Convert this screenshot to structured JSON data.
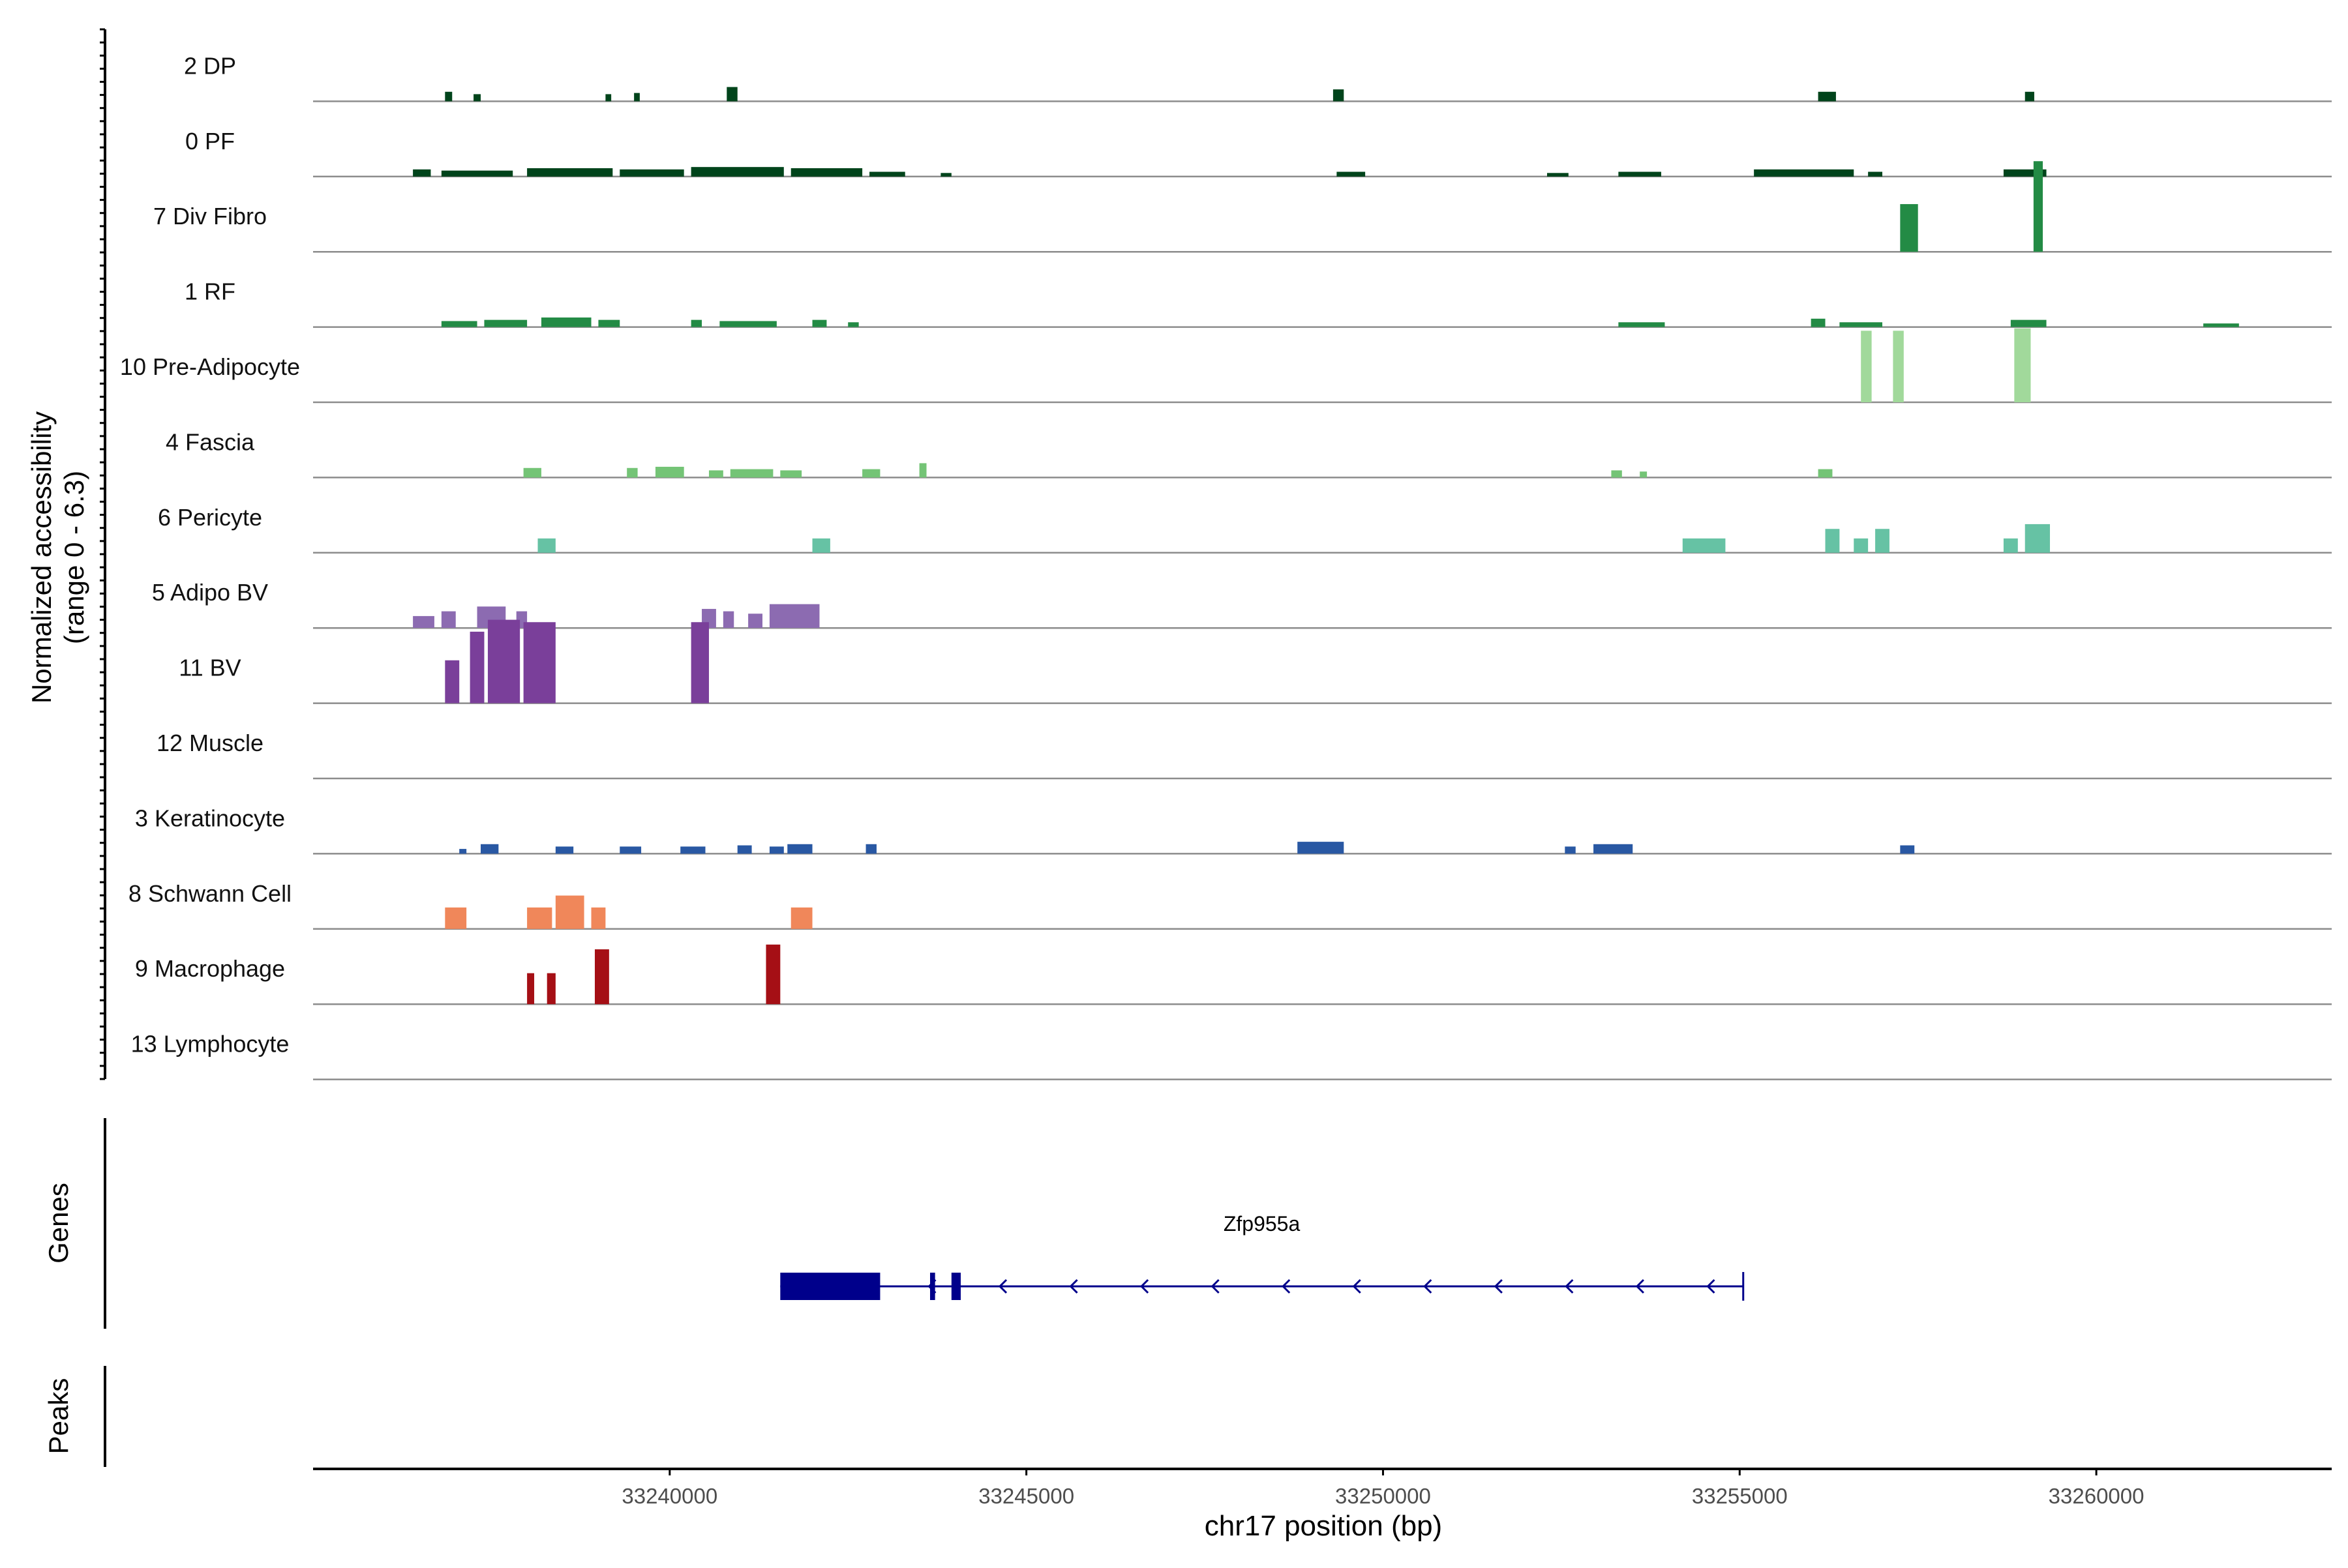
{
  "chart_data": {
    "type": "area",
    "subtype": "genome-coverage-track",
    "region": {
      "chrom": "chr17",
      "start": 33235000,
      "end": 33263300
    },
    "ylabel": "Normalized accessibility",
    "ylabel_range": "(range 0 - 6.3)",
    "ylim": [
      0,
      6.3
    ],
    "xlabel": "chr17 position (bp)",
    "x_ticks": [
      33240000,
      33245000,
      33250000,
      33255000,
      33260000
    ],
    "x_tick_labels": [
      "33240000",
      "33245000",
      "33250000",
      "33255000",
      "33260000"
    ],
    "grid": false,
    "tracks": [
      {
        "name": "2 DP",
        "color": "#00441b",
        "peaks": [
          [
            33236850,
            33236950,
            0.4
          ],
          [
            33237250,
            33237350,
            0.3
          ],
          [
            33239100,
            33239180,
            0.3
          ],
          [
            33239500,
            33239580,
            0.35
          ],
          [
            33240800,
            33240950,
            0.6
          ],
          [
            33249300,
            33249450,
            0.5
          ],
          [
            33256100,
            33256350,
            0.4
          ],
          [
            33259000,
            33259130,
            0.4
          ]
        ]
      },
      {
        "name": "0 PF",
        "color": "#00441b",
        "peaks": [
          [
            33236400,
            33236650,
            0.3
          ],
          [
            33236800,
            33237800,
            0.25
          ],
          [
            33238000,
            33239200,
            0.35
          ],
          [
            33239300,
            33240200,
            0.3
          ],
          [
            33240300,
            33241600,
            0.4
          ],
          [
            33241700,
            33242700,
            0.35
          ],
          [
            33242800,
            33243300,
            0.2
          ],
          [
            33243800,
            33243950,
            0.15
          ],
          [
            33249350,
            33249750,
            0.2
          ],
          [
            33252300,
            33252600,
            0.15
          ],
          [
            33253300,
            33253900,
            0.2
          ],
          [
            33255200,
            33256600,
            0.3
          ],
          [
            33256800,
            33257000,
            0.2
          ],
          [
            33258700,
            33259300,
            0.3
          ]
        ]
      },
      {
        "name": "7 Div Fibro",
        "color": "#238b45",
        "peaks": [
          [
            33257250,
            33257500,
            2.0
          ],
          [
            33259120,
            33259250,
            3.8
          ]
        ]
      },
      {
        "name": "1 RF",
        "color": "#238b45",
        "peaks": [
          [
            33236800,
            33237300,
            0.25
          ],
          [
            33237400,
            33238000,
            0.3
          ],
          [
            33238200,
            33238900,
            0.4
          ],
          [
            33239000,
            33239300,
            0.3
          ],
          [
            33240300,
            33240450,
            0.3
          ],
          [
            33240700,
            33241500,
            0.25
          ],
          [
            33242000,
            33242200,
            0.3
          ],
          [
            33242500,
            33242650,
            0.2
          ],
          [
            33253300,
            33253950,
            0.2
          ],
          [
            33256000,
            33256200,
            0.35
          ],
          [
            33256400,
            33257000,
            0.2
          ],
          [
            33258800,
            33259300,
            0.3
          ],
          [
            33261500,
            33262000,
            0.15
          ]
        ]
      },
      {
        "name": "10 Pre-Adipocyte",
        "color": "#a1d99b",
        "peaks": [
          [
            33256700,
            33256850,
            3.0
          ],
          [
            33257150,
            33257300,
            3.0
          ],
          [
            33258850,
            33259080,
            3.1
          ]
        ]
      },
      {
        "name": "4 Fascia",
        "color": "#74c476",
        "peaks": [
          [
            33237950,
            33238200,
            0.4
          ],
          [
            33239400,
            33239550,
            0.4
          ],
          [
            33239800,
            33240200,
            0.45
          ],
          [
            33240550,
            33240750,
            0.3
          ],
          [
            33240850,
            33241450,
            0.35
          ],
          [
            33241550,
            33241850,
            0.3
          ],
          [
            33242700,
            33242950,
            0.35
          ],
          [
            33243500,
            33243600,
            0.6
          ],
          [
            33253200,
            33253350,
            0.3
          ],
          [
            33253600,
            33253700,
            0.25
          ],
          [
            33256100,
            33256300,
            0.35
          ]
        ]
      },
      {
        "name": "6 Pericyte",
        "color": "#66c2a4",
        "peaks": [
          [
            33238150,
            33238400,
            0.6
          ],
          [
            33242000,
            33242250,
            0.6
          ],
          [
            33254200,
            33254800,
            0.6
          ],
          [
            33256200,
            33256400,
            1.0
          ],
          [
            33256600,
            33256800,
            0.6
          ],
          [
            33256900,
            33257100,
            1.0
          ],
          [
            33258700,
            33258900,
            0.6
          ],
          [
            33259000,
            33259350,
            1.2
          ]
        ]
      },
      {
        "name": "5 Adipo BV",
        "color": "#8c6bb1",
        "peaks": [
          [
            33236400,
            33236700,
            0.5
          ],
          [
            33236800,
            33237000,
            0.7
          ],
          [
            33237300,
            33237700,
            0.9
          ],
          [
            33237850,
            33238000,
            0.7
          ],
          [
            33240450,
            33240650,
            0.8
          ],
          [
            33240750,
            33240900,
            0.7
          ],
          [
            33241100,
            33241300,
            0.6
          ],
          [
            33241400,
            33242100,
            1.0
          ]
        ]
      },
      {
        "name": "11 BV",
        "color": "#7a3f9a",
        "peaks": [
          [
            33236850,
            33237050,
            1.8
          ],
          [
            33237200,
            33237400,
            3.0
          ],
          [
            33237450,
            33237900,
            3.5
          ],
          [
            33237950,
            33238400,
            3.4
          ],
          [
            33240300,
            33240550,
            3.4
          ]
        ]
      },
      {
        "name": "12 Muscle",
        "color": "#6a51a3",
        "peaks": []
      },
      {
        "name": "3 Keratinocyte",
        "color": "#2958a3",
        "peaks": [
          [
            33237050,
            33237150,
            0.2
          ],
          [
            33237350,
            33237600,
            0.4
          ],
          [
            33238400,
            33238650,
            0.3
          ],
          [
            33239300,
            33239600,
            0.3
          ],
          [
            33240150,
            33240500,
            0.3
          ],
          [
            33240950,
            33241150,
            0.35
          ],
          [
            33241400,
            33241600,
            0.3
          ],
          [
            33241650,
            33242000,
            0.4
          ],
          [
            33242750,
            33242900,
            0.4
          ],
          [
            33248800,
            33249450,
            0.5
          ],
          [
            33252550,
            33252700,
            0.3
          ],
          [
            33252950,
            33253500,
            0.4
          ],
          [
            33257250,
            33257450,
            0.35
          ]
        ]
      },
      {
        "name": "8 Schwann Cell",
        "color": "#f0875a",
        "peaks": [
          [
            33236850,
            33237150,
            0.9
          ],
          [
            33238000,
            33238350,
            0.9
          ],
          [
            33238400,
            33238800,
            1.4
          ],
          [
            33238900,
            33239100,
            0.9
          ],
          [
            33241700,
            33242000,
            0.9
          ]
        ]
      },
      {
        "name": "9 Macrophage",
        "color": "#a50f15",
        "peaks": [
          [
            33238000,
            33238100,
            1.3
          ],
          [
            33238280,
            33238400,
            1.3
          ],
          [
            33238950,
            33239150,
            2.3
          ],
          [
            33241350,
            33241550,
            2.5
          ]
        ]
      },
      {
        "name": "13 Lymphocyte",
        "color": "#a50f15",
        "peaks": []
      }
    ],
    "genes_label": "Genes",
    "peaks_label": "Peaks",
    "gene": {
      "name": "Zfp955a",
      "strand": "-",
      "color": "#00008b",
      "start": 33241550,
      "end": 33255050,
      "exons": [
        [
          33241550,
          33242950
        ],
        [
          33243650,
          33243720
        ],
        [
          33243950,
          33244080
        ]
      ]
    }
  }
}
